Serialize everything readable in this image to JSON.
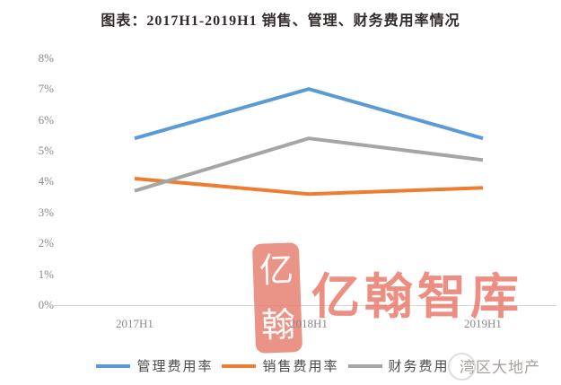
{
  "chart_data": {
    "type": "line",
    "title": "图表：2017H1-2019H1 销售、管理、财务费用率情况",
    "categories": [
      "2017H1",
      "2018H1",
      "2019H1"
    ],
    "series": [
      {
        "name": "管理费用率",
        "color": "#5B9BD5",
        "values": [
          5.4,
          7.0,
          5.4
        ]
      },
      {
        "name": "销售费用率",
        "color": "#ED7D31",
        "values": [
          4.1,
          3.6,
          3.8
        ]
      },
      {
        "name": "财务费用率",
        "color": "#A5A5A5",
        "values": [
          3.7,
          5.4,
          4.7
        ]
      }
    ],
    "y_tick_labels": [
      "8%",
      "7%",
      "6%",
      "5%",
      "4%",
      "3%",
      "2%",
      "1%",
      "0%"
    ],
    "ylabel": "",
    "xlabel": "",
    "ylim": [
      0,
      8
    ],
    "grid": false,
    "legend_position": "bottom"
  },
  "watermark": {
    "seal_char_top": "亿",
    "seal_char_bottom": "翰",
    "brand_text": "亿翰智库",
    "brand_color": "#E76E5E",
    "footer_text": "湾区大地产"
  }
}
